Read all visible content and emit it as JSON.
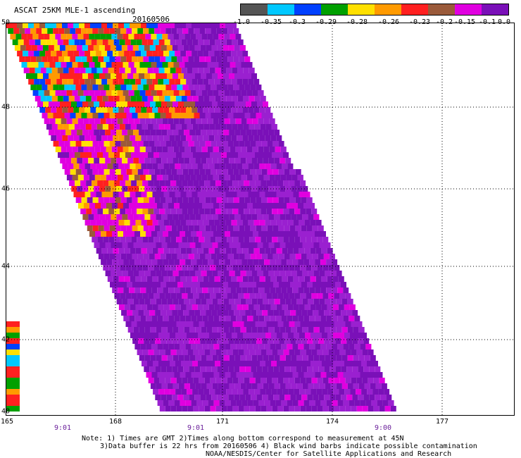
{
  "header": {
    "title": "ASCAT 25KM MLE-1 ascending",
    "date": "20160506"
  },
  "colorbar": {
    "colors": [
      "#555555",
      "#00c8ff",
      "#0040ff",
      "#00a000",
      "#ffe000",
      "#ff9a00",
      "#ff2020",
      "#9a5a3a",
      "#e000e0",
      "#7a10b8"
    ],
    "labels": [
      "-1.0",
      "-0.35",
      "-0.3",
      "-0.29",
      "-0.28",
      "-0.26",
      "-0.23",
      "-0.2",
      "-0.15",
      "-0.1",
      "0.0"
    ]
  },
  "axes": {
    "lat_labels": [
      "50",
      "48",
      "46",
      "44",
      "42",
      "40"
    ],
    "lon_labels": [
      "165",
      "168",
      "171",
      "174",
      "177"
    ],
    "time_labels": [
      "9:01",
      "9:01",
      "9:00"
    ]
  },
  "notes": {
    "line1": "Note: 1) Times are GMT 2)Times along bottom correspond to measurement at 45N",
    "line2": "3)Data buffer is 22 hrs from 20160506 4) Black wind barbs indicate possible contamination",
    "line3": "NOAA/NESDIS/Center for Satellite Applications and Research"
  }
}
